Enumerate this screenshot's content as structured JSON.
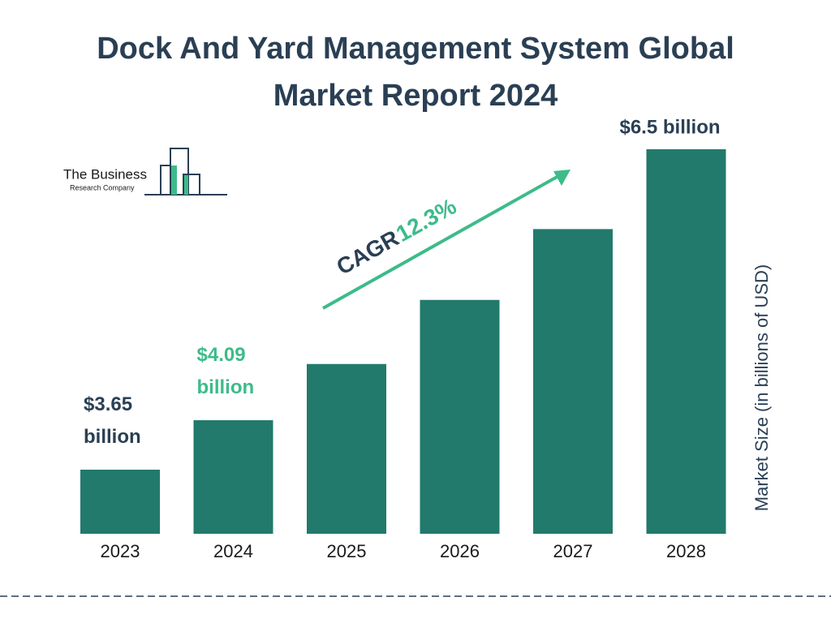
{
  "chart_data": {
    "type": "bar",
    "title": [
      "Dock And Yard Management System Global",
      "Market Report 2024"
    ],
    "categories": [
      "2023",
      "2024",
      "2025",
      "2026",
      "2027",
      "2028"
    ],
    "values": [
      3.65,
      4.09,
      4.59,
      5.16,
      5.79,
      6.5
    ],
    "value_labels": [
      "$3.65 billion",
      "$4.09 billion",
      null,
      null,
      null,
      "$6.5 billion"
    ],
    "value_label_colors": [
      "#2a3f54",
      "#3dbb8a",
      null,
      null,
      null,
      "#2a3f54"
    ],
    "color": "#217a6c",
    "y_axis_label": "Market Size (in billions of USD)",
    "annotation": {
      "label": "CAGR",
      "value": "12.3%",
      "color": "#3dbb8a",
      "label_color": "#2a3f54"
    },
    "logo": [
      "The Business",
      "Research Company"
    ]
  }
}
